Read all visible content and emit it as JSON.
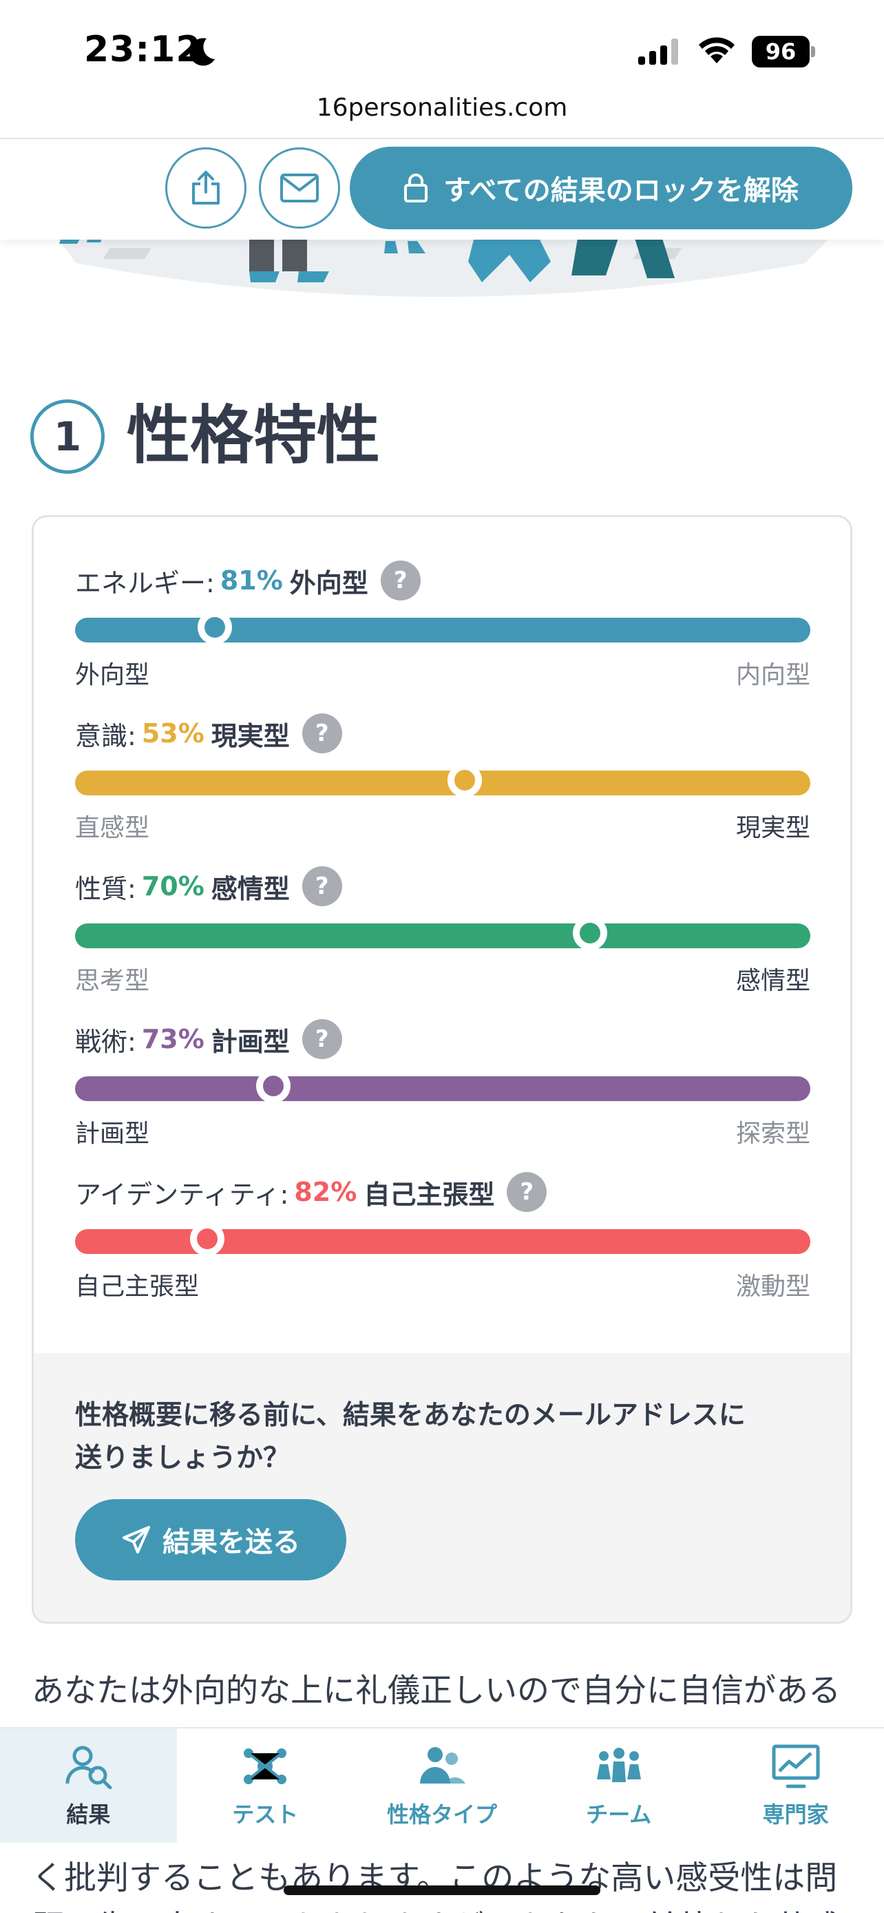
{
  "status_bar": {
    "time": "23:12",
    "battery": "96"
  },
  "browser": {
    "url": "16personalities.com"
  },
  "action_bar": {
    "unlock_label": "すべての結果のロックを解除"
  },
  "section": {
    "number": "1",
    "title": "性格特性"
  },
  "traits": [
    {
      "category": "エネルギー:",
      "percent": "81%",
      "type": "外向型",
      "left": "外向型",
      "right": "内向型",
      "active_side": "left",
      "position": 0.19,
      "color": "#4298b4"
    },
    {
      "category": "意識:",
      "percent": "53%",
      "type": "現実型",
      "left": "直感型",
      "right": "現実型",
      "active_side": "right",
      "position": 0.53,
      "color": "#e4ae3a"
    },
    {
      "category": "性質:",
      "percent": "70%",
      "type": "感情型",
      "left": "思考型",
      "right": "感情型",
      "active_side": "right",
      "position": 0.7,
      "color": "#33a474"
    },
    {
      "category": "戦術:",
      "percent": "73%",
      "type": "計画型",
      "left": "計画型",
      "right": "探索型",
      "active_side": "left",
      "position": 0.27,
      "color": "#88619a"
    },
    {
      "category": "アイデンティティ:",
      "percent": "82%",
      "type": "自己主張型",
      "left": "自己主張型",
      "right": "激動型",
      "active_side": "left",
      "position": 0.18,
      "color": "#f25e62"
    }
  ],
  "help_glyph": "?",
  "email_prompt": {
    "line1": "性格概要に移る前に、結果をあなたのメールアドレスに",
    "line2": "送りましょうか？",
    "button": "結果を送る"
  },
  "paragraph": {
    "line1": "あなたは外向的な上に礼儀正しいので自分に自信がある",
    "line2": "く批判することもあります。このような高い感受性は問",
    "line3": "題に生み出すこともありますが、あなたの並外れた共感"
  },
  "bottom_nav": [
    {
      "label": "結果",
      "icon": "results-icon",
      "active": true
    },
    {
      "label": "テスト",
      "icon": "test-icon",
      "active": false
    },
    {
      "label": "性格タイプ",
      "icon": "personality-types-icon",
      "active": false
    },
    {
      "label": "チーム",
      "icon": "teams-icon",
      "active": false
    },
    {
      "label": "専門家",
      "icon": "professional-icon",
      "active": false
    }
  ]
}
